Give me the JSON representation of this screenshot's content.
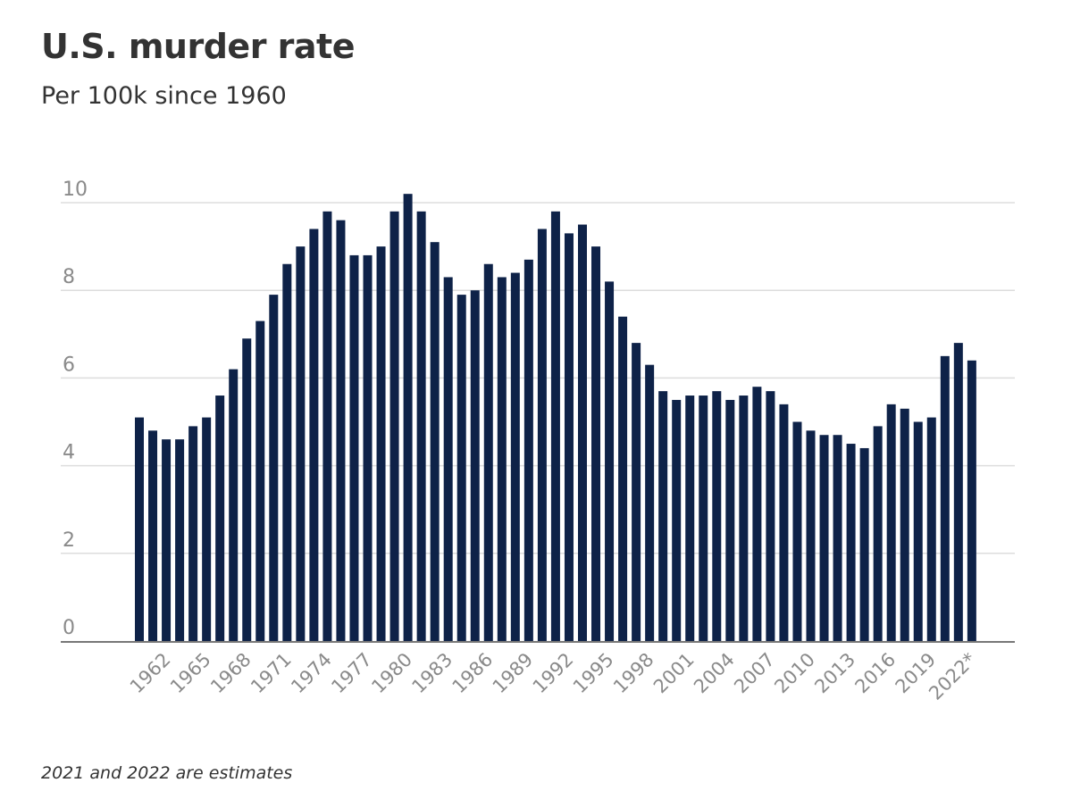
{
  "title": "U.S. murder rate",
  "subtitle": "Per 100k since 1960",
  "footnote": "2021 and 2022 are estimates",
  "colors": {
    "bar": "#0e2248",
    "grid": "#dddddd",
    "axis": "#777777",
    "tick_text": "#8a8a8a",
    "title_text": "#333333"
  },
  "chart_data": {
    "type": "bar",
    "title": "U.S. murder rate",
    "subtitle": "Per 100k since 1960",
    "xlabel": "",
    "ylabel": "",
    "ylim": [
      0,
      10
    ],
    "yticks": [
      0,
      2,
      4,
      6,
      8,
      10
    ],
    "grid": true,
    "categories": [
      "1960",
      "1961",
      "1962",
      "1963",
      "1964",
      "1965",
      "1966",
      "1967",
      "1968",
      "1969",
      "1970",
      "1971",
      "1972",
      "1973",
      "1974",
      "1975",
      "1976",
      "1977",
      "1978",
      "1979",
      "1980",
      "1981",
      "1982",
      "1983",
      "1984",
      "1985",
      "1986",
      "1987",
      "1988",
      "1989",
      "1990",
      "1991",
      "1992",
      "1993",
      "1994",
      "1995",
      "1996",
      "1997",
      "1998",
      "1999",
      "2000",
      "2001",
      "2002",
      "2003",
      "2004",
      "2005",
      "2006",
      "2007",
      "2008",
      "2009",
      "2010",
      "2011",
      "2012",
      "2013",
      "2014",
      "2015",
      "2016",
      "2017",
      "2018",
      "2019",
      "2020",
      "2021",
      "2022*"
    ],
    "values": [
      5.1,
      4.8,
      4.6,
      4.6,
      4.9,
      5.1,
      5.6,
      6.2,
      6.9,
      7.3,
      7.9,
      8.6,
      9.0,
      9.4,
      9.8,
      9.6,
      8.8,
      8.8,
      9.0,
      9.8,
      10.2,
      9.8,
      9.1,
      8.3,
      7.9,
      8.0,
      8.6,
      8.3,
      8.4,
      8.7,
      9.4,
      9.8,
      9.3,
      9.5,
      9.0,
      8.2,
      7.4,
      6.8,
      6.3,
      5.7,
      5.5,
      5.6,
      5.6,
      5.7,
      5.5,
      5.6,
      5.8,
      5.7,
      5.4,
      5.0,
      4.8,
      4.7,
      4.7,
      4.5,
      4.4,
      4.9,
      5.4,
      5.3,
      5.0,
      5.1,
      6.5,
      6.8,
      6.4
    ],
    "xtick_labels": [
      "1962",
      "1965",
      "1968",
      "1971",
      "1974",
      "1977",
      "1980",
      "1983",
      "1986",
      "1989",
      "1992",
      "1995",
      "1998",
      "2001",
      "2004",
      "2007",
      "2010",
      "2013",
      "2016",
      "2019",
      "2022*"
    ]
  }
}
